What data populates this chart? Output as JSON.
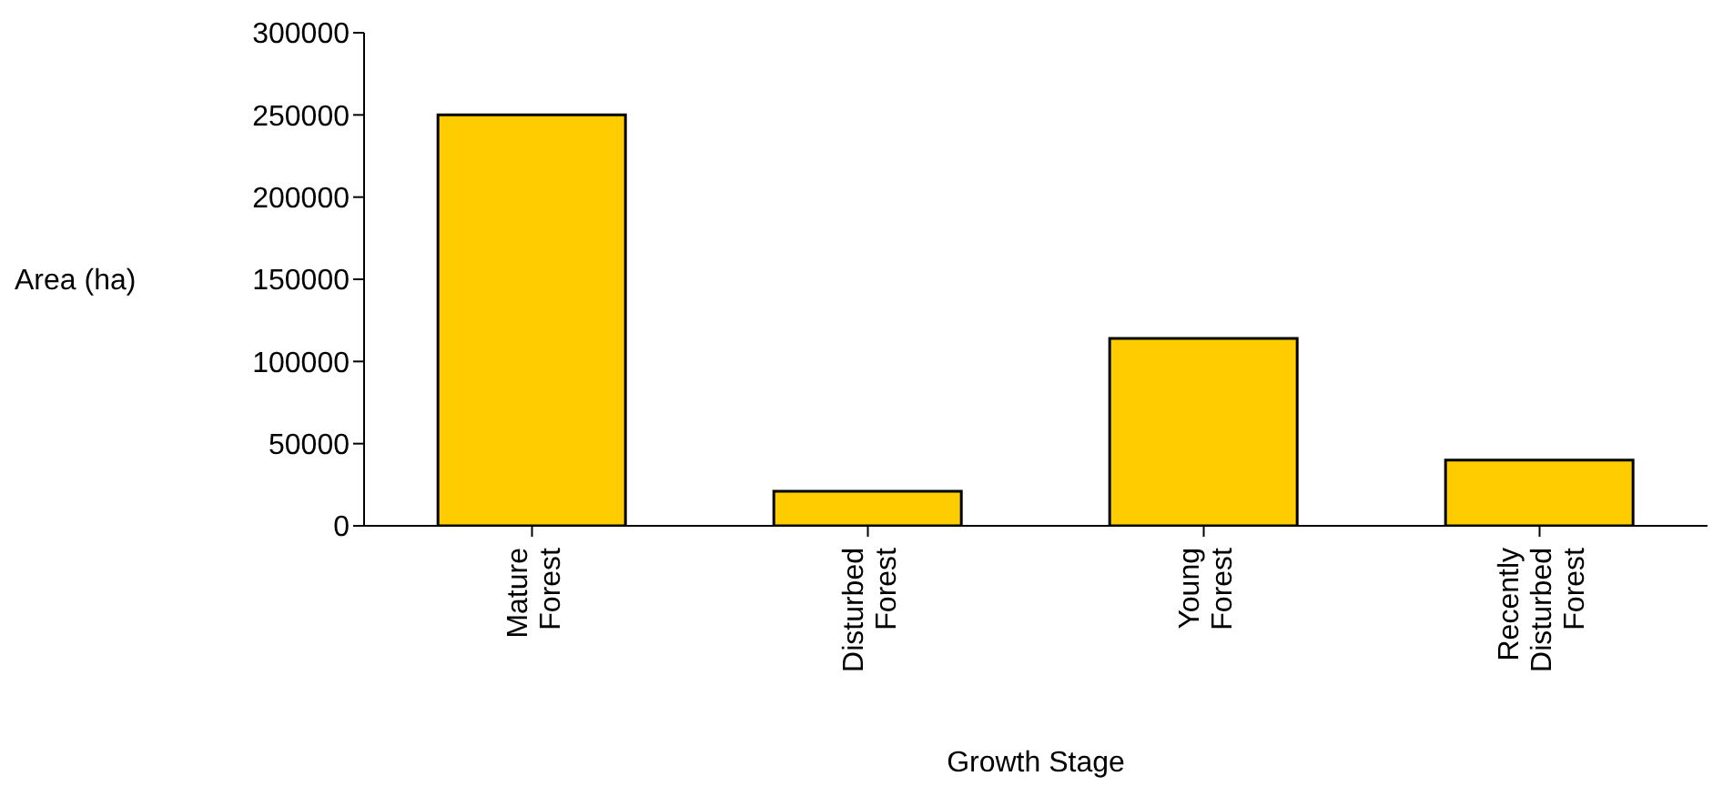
{
  "chart_data": {
    "type": "bar",
    "xlabel": "Growth Stage",
    "ylabel": "Area (ha)",
    "categories": [
      "Mature Forest",
      "Disturbed Forest",
      "Young Forest",
      "Recently Disturbed Forest"
    ],
    "values": [
      250000,
      21000,
      114000,
      40000
    ],
    "color": "#ffcc00",
    "ylim": [
      0,
      300000
    ],
    "yticks": [
      0,
      50000,
      100000,
      150000,
      200000,
      250000,
      300000
    ],
    "grid": false,
    "legend": false
  }
}
